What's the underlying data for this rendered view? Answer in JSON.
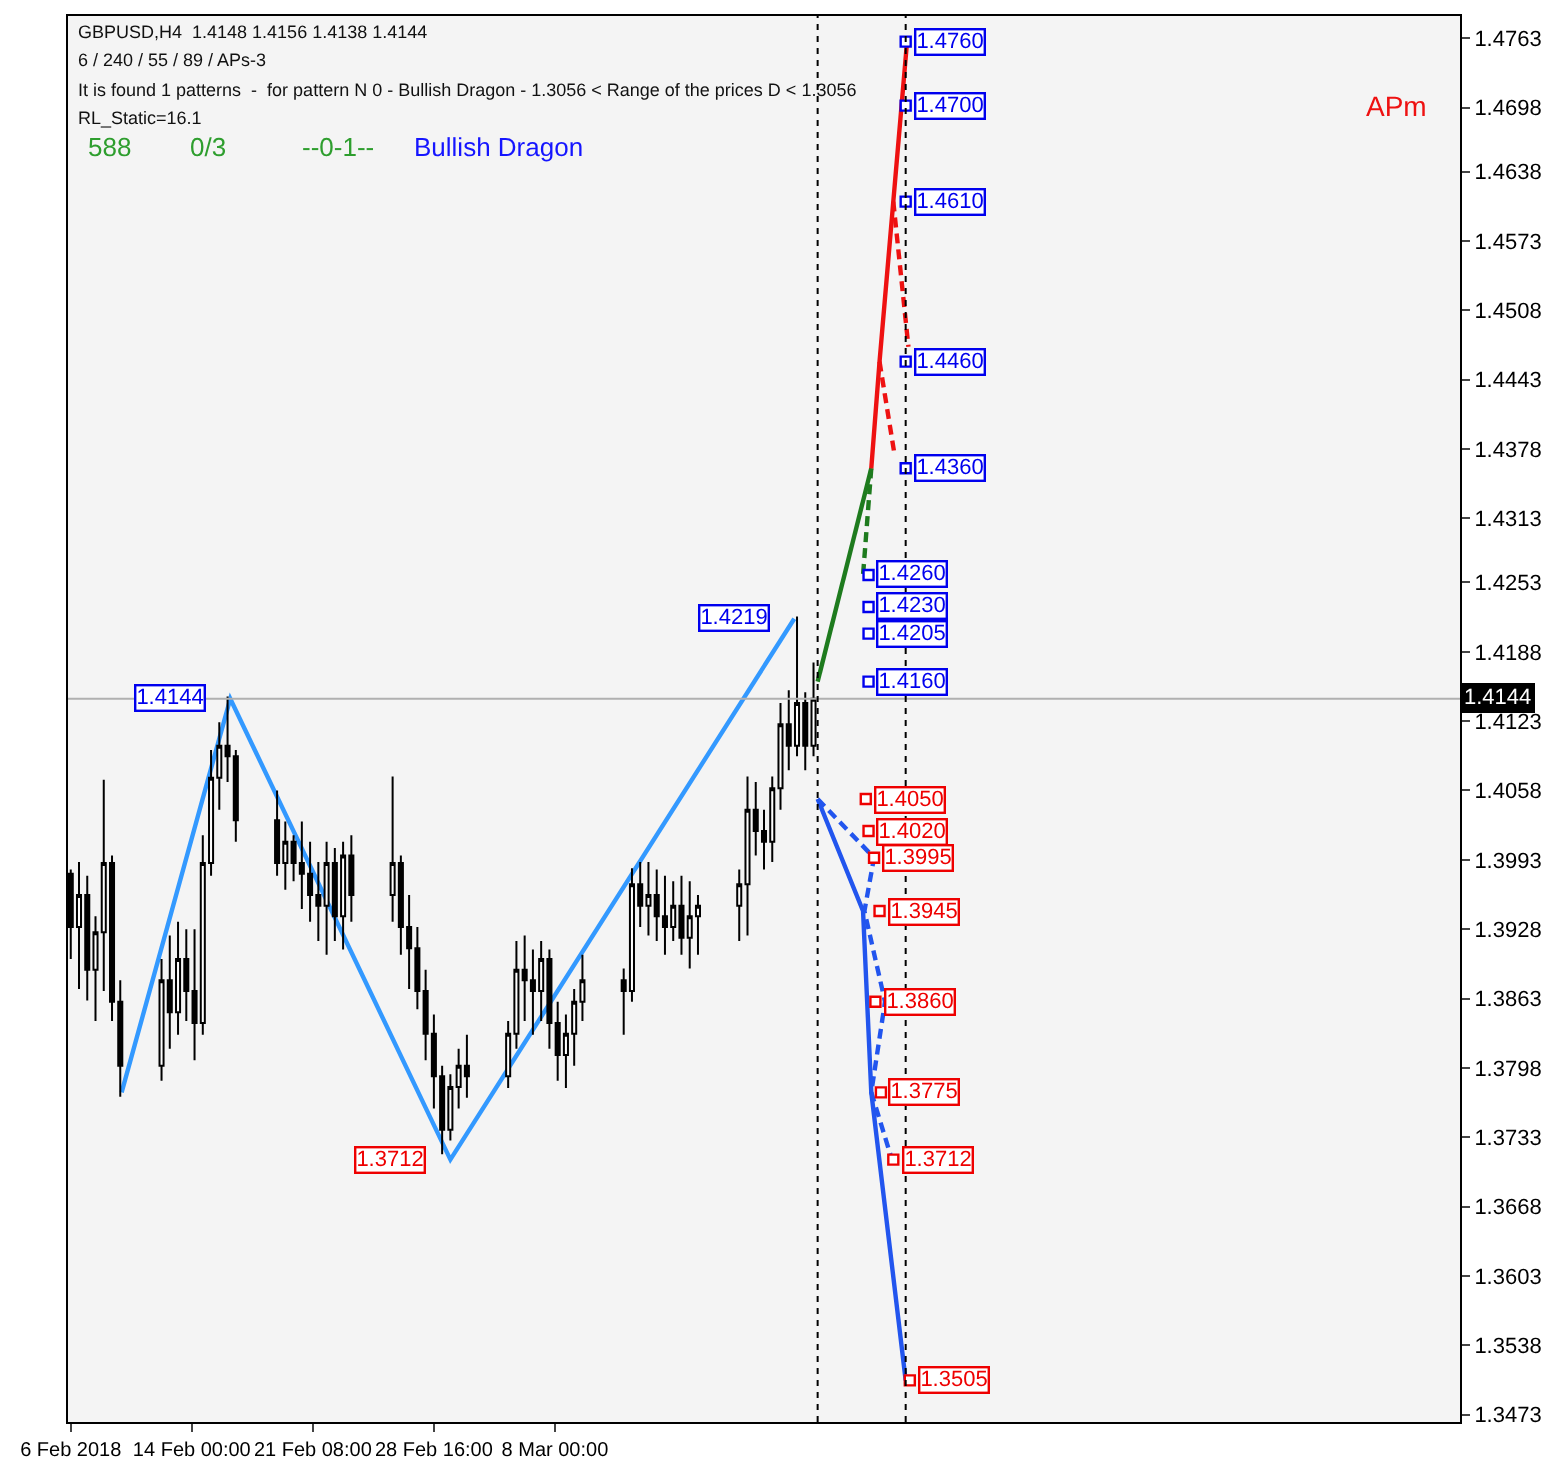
{
  "chart_data": {
    "type": "candlestick",
    "title": "GBPUSD,H4  1.4148 1.4156 1.4138 1.4144",
    "subtitle": "6 / 240 / 55 / 89 / APs-3",
    "x": [
      "2018-02-06T16:00",
      "2018-02-07T04:00",
      "2018-02-07T16:00",
      "2018-02-08T04:00",
      "2018-02-08T16:00",
      "2018-02-09T04:00",
      "2018-02-09T16:00",
      "2018-02-12T04:00",
      "2018-02-12T16:00",
      "2018-02-13T04:00",
      "2018-02-13T16:00",
      "2018-02-14T04:00",
      "2018-02-14T16:00",
      "2018-02-15T04:00",
      "2018-02-15T16:00",
      "2018-02-16T04:00",
      "2018-02-16T16:00",
      "2018-02-19T04:00",
      "2018-02-19T16:00",
      "2018-02-20T04:00",
      "2018-02-20T16:00",
      "2018-02-21T04:00",
      "2018-02-21T16:00",
      "2018-02-22T04:00",
      "2018-02-22T16:00",
      "2018-02-23T04:00",
      "2018-02-23T16:00",
      "2018-02-26T04:00",
      "2018-02-26T16:00",
      "2018-02-27T04:00",
      "2018-02-27T16:00",
      "2018-02-28T04:00",
      "2018-02-28T16:00",
      "2018-03-01T04:00",
      "2018-03-01T16:00",
      "2018-03-02T04:00",
      "2018-03-02T16:00",
      "2018-03-05T04:00",
      "2018-03-05T16:00",
      "2018-03-06T04:00",
      "2018-03-06T16:00",
      "2018-03-07T04:00",
      "2018-03-07T16:00",
      "2018-03-08T04:00",
      "2018-03-08T16:00",
      "2018-03-09T04:00",
      "2018-03-09T16:00",
      "2018-03-12T04:00",
      "2018-03-12T16:00",
      "2018-03-13T04:00",
      "2018-03-13T16:00",
      "2018-03-14T04:00",
      "2018-03-14T16:00",
      "2018-03-15T04:00",
      "2018-03-15T16:00",
      "2018-03-16T04:00",
      "2018-03-16T16:00",
      "2018-03-19T04:00",
      "2018-03-19T16:00",
      "2018-03-20T04:00",
      "2018-03-20T16:00",
      "2018-03-21T04:00",
      "2018-03-21T16:00",
      "2018-03-22T04:00",
      "2018-03-22T16:00",
      "2018-03-23T04:00",
      "2018-03-23T16:00"
    ],
    "ohlc": [
      [
        1.398,
        1.3984,
        1.39,
        1.393
      ],
      [
        1.393,
        1.3991,
        1.3872,
        1.396
      ],
      [
        1.396,
        1.3978,
        1.3861,
        1.389
      ],
      [
        1.389,
        1.394,
        1.3842,
        1.3925
      ],
      [
        1.3925,
        1.4068,
        1.387,
        1.399
      ],
      [
        1.399,
        1.3997,
        1.3842,
        1.386
      ],
      [
        1.386,
        1.388,
        1.3771,
        1.38
      ],
      [
        1.38,
        1.39,
        1.3786,
        1.388
      ],
      [
        1.388,
        1.3922,
        1.3816,
        1.385
      ],
      [
        1.385,
        1.3935,
        1.3829,
        1.39
      ],
      [
        1.39,
        1.3928,
        1.3842,
        1.387
      ],
      [
        1.387,
        1.3928,
        1.3805,
        1.384
      ],
      [
        1.384,
        1.4016,
        1.3829,
        1.399
      ],
      [
        1.399,
        1.4096,
        1.3978,
        1.407
      ],
      [
        1.407,
        1.4122,
        1.404,
        1.41
      ],
      [
        1.41,
        1.4146,
        1.4066,
        1.409
      ],
      [
        1.409,
        1.4096,
        1.401,
        1.403
      ],
      [
        1.403,
        1.4058,
        1.3978,
        1.399
      ],
      [
        1.399,
        1.4029,
        1.3965,
        1.401
      ],
      [
        1.401,
        1.4016,
        1.3973,
        1.399
      ],
      [
        1.399,
        1.4029,
        1.3947,
        1.398
      ],
      [
        1.398,
        1.401,
        1.3935,
        1.396
      ],
      [
        1.396,
        1.3991,
        1.3917,
        1.395
      ],
      [
        1.395,
        1.401,
        1.3904,
        1.399
      ],
      [
        1.399,
        1.4004,
        1.3917,
        1.394
      ],
      [
        1.394,
        1.401,
        1.3909,
        1.3997
      ],
      [
        1.3997,
        1.4016,
        1.3935,
        1.396
      ],
      [
        1.396,
        1.4071,
        1.3935,
        1.399
      ],
      [
        1.399,
        1.3997,
        1.3904,
        1.393
      ],
      [
        1.393,
        1.396,
        1.3872,
        1.391
      ],
      [
        1.391,
        1.393,
        1.3853,
        1.387
      ],
      [
        1.387,
        1.389,
        1.3805,
        1.383
      ],
      [
        1.383,
        1.3848,
        1.376,
        1.379
      ],
      [
        1.379,
        1.38,
        1.3717,
        1.374
      ],
      [
        1.374,
        1.3792,
        1.373,
        1.378
      ],
      [
        1.378,
        1.3816,
        1.376,
        1.38
      ],
      [
        1.38,
        1.3829,
        1.377,
        1.379
      ],
      [
        1.379,
        1.3842,
        1.3779,
        1.383
      ],
      [
        1.383,
        1.3917,
        1.3816,
        1.389
      ],
      [
        1.389,
        1.3922,
        1.3842,
        1.388
      ],
      [
        1.388,
        1.3909,
        1.3829,
        1.387
      ],
      [
        1.387,
        1.3917,
        1.3842,
        1.39
      ],
      [
        1.39,
        1.3909,
        1.3816,
        1.384
      ],
      [
        1.384,
        1.386,
        1.3786,
        1.381
      ],
      [
        1.381,
        1.3848,
        1.3779,
        1.383
      ],
      [
        1.383,
        1.3872,
        1.38,
        1.386
      ],
      [
        1.386,
        1.3904,
        1.3842,
        1.388
      ],
      [
        1.388,
        1.3891,
        1.3829,
        1.387
      ],
      [
        1.387,
        1.3985,
        1.386,
        1.397
      ],
      [
        1.397,
        1.3991,
        1.393,
        1.395
      ],
      [
        1.395,
        1.3991,
        1.3922,
        1.396
      ],
      [
        1.396,
        1.3984,
        1.3917,
        1.394
      ],
      [
        1.394,
        1.3978,
        1.3904,
        1.393
      ],
      [
        1.393,
        1.3973,
        1.3917,
        1.395
      ],
      [
        1.395,
        1.3978,
        1.3904,
        1.392
      ],
      [
        1.392,
        1.3973,
        1.3891,
        1.394
      ],
      [
        1.394,
        1.396,
        1.3904,
        1.395
      ],
      [
        1.395,
        1.3984,
        1.3917,
        1.397
      ],
      [
        1.397,
        1.4071,
        1.3922,
        1.404
      ],
      [
        1.404,
        1.4066,
        1.3997,
        1.402
      ],
      [
        1.402,
        1.404,
        1.3984,
        1.401
      ],
      [
        1.401,
        1.4071,
        1.3991,
        1.406
      ],
      [
        1.406,
        1.414,
        1.404,
        1.412
      ],
      [
        1.412,
        1.4152,
        1.4077,
        1.41
      ],
      [
        1.41,
        1.4221,
        1.409,
        1.414
      ],
      [
        1.414,
        1.415,
        1.4077,
        1.41
      ],
      [
        1.41,
        1.4178,
        1.409,
        1.4144
      ]
    ],
    "color": "#000000",
    "series": [
      {
        "type": "line",
        "color": "#3399ff",
        "x": [
          "2018-02-09T18:00",
          "2018-02-16T08:00",
          "2018-03-01T16:00",
          "2018-03-22T12:00"
        ],
        "values": [
          1.3775,
          1.4144,
          1.3712,
          1.4219
        ]
      },
      {
        "type": "line",
        "color": "#1e7b1e",
        "x": [
          "2018-03-23T22:00",
          "2018-03-27T04:00"
        ],
        "values": [
          1.416,
          1.436
        ]
      },
      {
        "type": "line",
        "color": "#1e7b1e",
        "line_style": "dashed",
        "x": [
          "2018-03-27T04:00",
          "2018-03-26T16:00"
        ],
        "values": [
          1.436,
          1.426
        ]
      },
      {
        "type": "line",
        "color": "#ee1111",
        "x": [
          "2018-03-27T04:00",
          "2018-03-27T16:00",
          "2018-03-28T12:00",
          "2018-03-29T08:00"
        ],
        "values": [
          1.436,
          1.446,
          1.461,
          1.476
        ]
      },
      {
        "type": "line",
        "color": "#ee1111",
        "line_style": "dashed",
        "x": [
          "2018-03-27T16:00",
          "2018-03-28T14:00"
        ],
        "values": [
          1.446,
          1.4372
        ]
      },
      {
        "type": "line",
        "color": "#ee1111",
        "line_style": "dashed",
        "x": [
          "2018-03-28T12:00",
          "2018-03-29T10:00"
        ],
        "values": [
          1.461,
          1.4474
        ]
      },
      {
        "type": "line",
        "color": "#2255ee",
        "x": [
          "2018-03-23T22:00",
          "2018-03-26T16:00",
          "2018-03-27T04:00",
          "2018-03-29T06:00"
        ],
        "values": [
          1.405,
          1.3945,
          1.3775,
          1.3505
        ]
      },
      {
        "type": "line",
        "color": "#2255ee",
        "line_style": "dashed",
        "x": [
          "2018-03-23T22:00",
          "2018-03-27T08:00",
          "2018-03-26T18:00",
          "2018-03-28T00:00",
          "2018-03-27T04:00",
          "2018-03-28T10:00"
        ],
        "values": [
          1.405,
          1.3995,
          1.3945,
          1.386,
          1.3775,
          1.3712
        ]
      },
      {
        "type": "scatter",
        "color": "#0000ee",
        "marker": "square",
        "x": [
          "2018-03-29T06:00",
          "2018-03-29T06:00",
          "2018-03-29T06:00",
          "2018-03-29T06:00",
          "2018-03-29T06:00",
          "2018-03-27T00:00",
          "2018-03-27T00:00",
          "2018-03-27T00:00",
          "2018-03-27T00:00"
        ],
        "values": [
          1.476,
          1.47,
          1.461,
          1.446,
          1.436,
          1.426,
          1.423,
          1.4205,
          1.416
        ]
      },
      {
        "type": "scatter",
        "color": "#ee0000",
        "marker": "square",
        "x": [
          "2018-03-26T20:00",
          "2018-03-27T00:00",
          "2018-03-27T08:00",
          "2018-03-27T16:00",
          "2018-03-27T10:00",
          "2018-03-27T18:00",
          "2018-03-28T12:00",
          "2018-03-29T12:00"
        ],
        "values": [
          1.405,
          1.402,
          1.3995,
          1.3945,
          1.386,
          1.3775,
          1.3712,
          1.3505
        ]
      }
    ],
    "annotations": [
      "It is found 1 patterns  -  for pattern N 0 - Bullish Dragon - 1.3056 < Range of the prices D < 1.3056",
      "RL_Static=16.1",
      "588",
      "0/3",
      "--0-1--",
      "Bullish Dragon",
      "APm",
      {
        "text": "1.4760",
        "x": "2018-03-29T06:00",
        "y": 1.476
      },
      {
        "text": "1.4700",
        "x": "2018-03-29T06:00",
        "y": 1.47
      },
      {
        "text": "1.4610",
        "x": "2018-03-29T06:00",
        "y": 1.461
      },
      {
        "text": "1.4460",
        "x": "2018-03-29T06:00",
        "y": 1.446
      },
      {
        "text": "1.4360",
        "x": "2018-03-29T06:00",
        "y": 1.436
      },
      {
        "text": "1.4260",
        "x": "2018-03-27T00:00",
        "y": 1.426
      },
      {
        "text": "1.4230",
        "x": "2018-03-27T00:00",
        "y": 1.423
      },
      {
        "text": "1.4205",
        "x": "2018-03-27T00:00",
        "y": 1.4205
      },
      {
        "text": "1.4160",
        "x": "2018-03-27T00:00",
        "y": 1.416
      },
      {
        "text": "1.4050",
        "x": "2018-03-26T20:00",
        "y": 1.405
      },
      {
        "text": "1.4020",
        "x": "2018-03-27T00:00",
        "y": 1.402
      },
      {
        "text": "1.3995",
        "x": "2018-03-27T08:00",
        "y": 1.3995
      },
      {
        "text": "1.3945",
        "x": "2018-03-27T16:00",
        "y": 1.3945
      },
      {
        "text": "1.3860",
        "x": "2018-03-27T10:00",
        "y": 1.386
      },
      {
        "text": "1.3775",
        "x": "2018-03-27T18:00",
        "y": 1.3775
      },
      {
        "text": "1.3712",
        "x": "2018-03-28T12:00",
        "y": 1.3712
      },
      {
        "text": "1.3505",
        "x": "2018-03-29T12:00",
        "y": 1.3505
      },
      {
        "text": "1.4219",
        "x": "2018-03-22T12:00",
        "y": 1.4219
      },
      {
        "text": "1.4144",
        "x": "2018-02-16T08:00",
        "y": 1.4144
      },
      {
        "text": "1.3712",
        "x": "2018-03-01T16:00",
        "y": 1.3712
      }
    ],
    "ref_lines": [
      {
        "axis": "y",
        "value": 1.4144,
        "label": "1.4144",
        "color": "#b0b0b0",
        "line_style": "solid"
      },
      {
        "axis": "x",
        "value": "2018-03-23T22:00",
        "color": "#000000",
        "line_style": "dotted"
      },
      {
        "axis": "x",
        "value": "2018-03-29T06:00",
        "color": "#000000",
        "line_style": "dotted"
      }
    ],
    "xlim": [
      "2018-02-06T12:00",
      "2018-05-01T20:00"
    ],
    "xticks": [
      {
        "value": "2018-02-06T16:00",
        "label": "6 Feb 2018"
      },
      {
        "value": "2018-02-14T00:00",
        "label": "14 Feb 00:00"
      },
      {
        "value": "2018-02-21T08:00",
        "label": "21 Feb 08:00"
      },
      {
        "value": "2018-02-28T16:00",
        "label": "28 Feb 16:00"
      },
      {
        "value": "2018-03-08T00:00",
        "label": "8 Mar 00:00"
      }
    ],
    "ylim": [
      1.3466,
      1.4784
    ],
    "yticks": [
      1.3473,
      1.3538,
      1.3603,
      1.3668,
      1.3733,
      1.3798,
      1.3863,
      1.3928,
      1.3993,
      1.4058,
      1.4123,
      1.4188,
      1.4253,
      1.4313,
      1.4378,
      1.4443,
      1.4508,
      1.4573,
      1.4638,
      1.4698,
      1.4763
    ],
    "grid": false,
    "marker": "none"
  }
}
